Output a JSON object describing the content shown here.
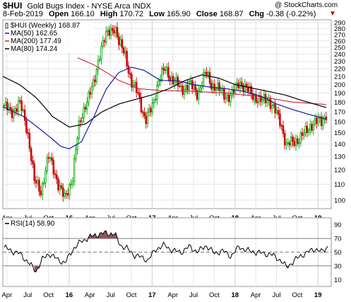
{
  "header": {
    "symbol": "$HUI",
    "title": "Gold Bugs Index - NYSE Arca INDX",
    "copyright": "@ StockCharts.com",
    "date": "8-Feb-2019",
    "open_label": "Open",
    "open": "166.10",
    "high_label": "High",
    "high": "170.72",
    "low_label": "Low",
    "low": "165.90",
    "close_label": "Close",
    "close": "168.87",
    "chg_label": "Chg",
    "chg": "-0.38 (-0.22%)",
    "chg_arrow": "▼"
  },
  "colors": {
    "price": "#00aa00",
    "price_down": "#cc0000",
    "ma50": "#1a1aa0",
    "ma200": "#cc2244",
    "ma80": "#000000",
    "rsi_line": "#000000",
    "rsi_fill": "#7a3a3a"
  },
  "chart_data": [
    {
      "type": "candlestick",
      "title": "",
      "legend": [
        {
          "label": "$HUI (Weekly) 168.87",
          "color": "#000000"
        },
        {
          "label": "MA(50) 162.65",
          "color": "#1a1aa0"
        },
        {
          "label": "MA(200) 177.49",
          "color": "#cc2244"
        },
        {
          "label": "MA(80) 174.24",
          "color": "#000000"
        }
      ],
      "legend_placement": "top-left",
      "yscale": "log",
      "ylim": [
        95,
        295
      ],
      "yticks": [
        100,
        110,
        120,
        130,
        140,
        150,
        160,
        170,
        180,
        190,
        200,
        210,
        220,
        230,
        240,
        250,
        260,
        270,
        280,
        290
      ],
      "xlim": [
        2015.2,
        2019.16
      ],
      "xticks": [
        {
          "label": "Apr",
          "x": 2015.25
        },
        {
          "label": "Jul",
          "x": 2015.5
        },
        {
          "label": "Oct",
          "x": 2015.75
        },
        {
          "label": "16",
          "x": 2016.0,
          "bold": true
        },
        {
          "label": "Apr",
          "x": 2016.25
        },
        {
          "label": "Jul",
          "x": 2016.5
        },
        {
          "label": "Oct",
          "x": 2016.75
        },
        {
          "label": "17",
          "x": 2017.0,
          "bold": true
        },
        {
          "label": "Apr",
          "x": 2017.25
        },
        {
          "label": "Jul",
          "x": 2017.5
        },
        {
          "label": "Oct",
          "x": 2017.75
        },
        {
          "label": "18",
          "x": 2018.0,
          "bold": true
        },
        {
          "label": "Apr",
          "x": 2018.25
        },
        {
          "label": "Jul",
          "x": 2018.5
        },
        {
          "label": "Oct",
          "x": 2018.75
        },
        {
          "label": "19",
          "x": 2019.0,
          "bold": true
        }
      ],
      "grid": true,
      "price_anchors": [
        [
          2015.2,
          178
        ],
        [
          2015.3,
          168
        ],
        [
          2015.4,
          180
        ],
        [
          2015.5,
          150
        ],
        [
          2015.58,
          112
        ],
        [
          2015.66,
          105
        ],
        [
          2015.75,
          130
        ],
        [
          2015.86,
          112
        ],
        [
          2015.95,
          100
        ],
        [
          2016.04,
          115
        ],
        [
          2016.12,
          155
        ],
        [
          2016.2,
          180
        ],
        [
          2016.3,
          200
        ],
        [
          2016.38,
          250
        ],
        [
          2016.46,
          270
        ],
        [
          2016.55,
          285
        ],
        [
          2016.6,
          255
        ],
        [
          2016.68,
          240
        ],
        [
          2016.75,
          200
        ],
        [
          2016.83,
          190
        ],
        [
          2016.92,
          160
        ],
        [
          2017.0,
          175
        ],
        [
          2017.08,
          205
        ],
        [
          2017.16,
          220
        ],
        [
          2017.25,
          205
        ],
        [
          2017.35,
          195
        ],
        [
          2017.45,
          200
        ],
        [
          2017.55,
          190
        ],
        [
          2017.65,
          215
        ],
        [
          2017.72,
          200
        ],
        [
          2017.85,
          190
        ],
        [
          2017.95,
          185
        ],
        [
          2018.05,
          205
        ],
        [
          2018.12,
          195
        ],
        [
          2018.2,
          190
        ],
        [
          2018.3,
          180
        ],
        [
          2018.4,
          185
        ],
        [
          2018.45,
          175
        ],
        [
          2018.55,
          160
        ],
        [
          2018.62,
          138
        ],
        [
          2018.7,
          142
        ],
        [
          2018.78,
          145
        ],
        [
          2018.85,
          150
        ],
        [
          2018.92,
          158
        ],
        [
          2018.98,
          160
        ],
        [
          2019.05,
          160
        ],
        [
          2019.1,
          169
        ]
      ],
      "ma50_anchors": [
        [
          2015.2,
          175
        ],
        [
          2015.45,
          165
        ],
        [
          2015.7,
          150
        ],
        [
          2015.9,
          138
        ],
        [
          2016.0,
          136
        ],
        [
          2016.15,
          142
        ],
        [
          2016.3,
          165
        ],
        [
          2016.45,
          195
        ],
        [
          2016.6,
          215
        ],
        [
          2016.75,
          222
        ],
        [
          2016.9,
          218
        ],
        [
          2017.1,
          205
        ],
        [
          2017.3,
          205
        ],
        [
          2017.5,
          200
        ],
        [
          2017.7,
          197
        ],
        [
          2017.9,
          195
        ],
        [
          2018.1,
          192
        ],
        [
          2018.3,
          187
        ],
        [
          2018.5,
          178
        ],
        [
          2018.7,
          172
        ],
        [
          2018.9,
          167
        ],
        [
          2019.1,
          162.65
        ]
      ],
      "ma200_anchors": [
        [
          2016.1,
          235
        ],
        [
          2016.3,
          225
        ],
        [
          2016.6,
          205
        ],
        [
          2016.85,
          195
        ],
        [
          2017.1,
          193
        ],
        [
          2017.5,
          192
        ],
        [
          2017.9,
          190
        ],
        [
          2018.3,
          186
        ],
        [
          2018.7,
          180
        ],
        [
          2019.1,
          177.49
        ]
      ],
      "ma80_anchors": [
        [
          2015.2,
          210
        ],
        [
          2015.4,
          200
        ],
        [
          2015.6,
          185
        ],
        [
          2015.8,
          165
        ],
        [
          2016.0,
          155
        ],
        [
          2016.2,
          158
        ],
        [
          2016.4,
          170
        ],
        [
          2016.6,
          178
        ],
        [
          2016.8,
          183
        ],
        [
          2017.0,
          188
        ],
        [
          2017.2,
          195
        ],
        [
          2017.4,
          205
        ],
        [
          2017.6,
          212
        ],
        [
          2017.8,
          208
        ],
        [
          2018.0,
          200
        ],
        [
          2018.2,
          196
        ],
        [
          2018.4,
          192
        ],
        [
          2018.6,
          188
        ],
        [
          2018.8,
          182
        ],
        [
          2019.1,
          174.24
        ]
      ]
    },
    {
      "type": "line",
      "title": "",
      "legend": [
        {
          "label": "RSI(14) 58.90",
          "color": "#000000"
        }
      ],
      "legend_placement": "top-left",
      "ylim": [
        0,
        100
      ],
      "yticks": [
        10,
        30,
        50,
        70,
        90
      ],
      "reference_lines": [
        30,
        50,
        70
      ],
      "rsi_anchors": [
        [
          2015.2,
          58
        ],
        [
          2015.3,
          52
        ],
        [
          2015.4,
          48
        ],
        [
          2015.5,
          36
        ],
        [
          2015.6,
          22
        ],
        [
          2015.68,
          40
        ],
        [
          2015.76,
          48
        ],
        [
          2015.85,
          40
        ],
        [
          2015.95,
          34
        ],
        [
          2016.05,
          55
        ],
        [
          2016.15,
          66
        ],
        [
          2016.25,
          72
        ],
        [
          2016.35,
          76
        ],
        [
          2016.45,
          78
        ],
        [
          2016.55,
          76
        ],
        [
          2016.62,
          60
        ],
        [
          2016.7,
          55
        ],
        [
          2016.78,
          46
        ],
        [
          2016.88,
          42
        ],
        [
          2016.95,
          38
        ],
        [
          2017.05,
          55
        ],
        [
          2017.15,
          60
        ],
        [
          2017.25,
          52
        ],
        [
          2017.35,
          50
        ],
        [
          2017.45,
          58
        ],
        [
          2017.55,
          50
        ],
        [
          2017.65,
          60
        ],
        [
          2017.75,
          48
        ],
        [
          2017.85,
          52
        ],
        [
          2017.95,
          44
        ],
        [
          2018.05,
          58
        ],
        [
          2018.15,
          52
        ],
        [
          2018.25,
          50
        ],
        [
          2018.35,
          48
        ],
        [
          2018.45,
          46
        ],
        [
          2018.55,
          38
        ],
        [
          2018.62,
          28
        ],
        [
          2018.7,
          36
        ],
        [
          2018.78,
          44
        ],
        [
          2018.88,
          50
        ],
        [
          2018.96,
          55
        ],
        [
          2019.05,
          50
        ],
        [
          2019.12,
          58.9
        ]
      ]
    }
  ]
}
